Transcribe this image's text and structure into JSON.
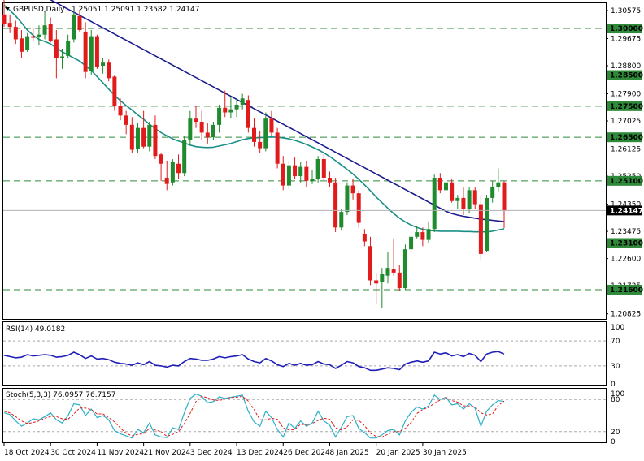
{
  "header": {
    "symbol": "GBPUSD,Daily",
    "ohlc": "1.25051 1.25091 1.23582 1.24147",
    "rsi_label": "RSI(14) 49.0182",
    "stoch_label": "Stoch(5,3,3) 76.0957 76.7157"
  },
  "colors": {
    "up": "#1f8a2e",
    "down": "#e11b1b",
    "ma_fast": "#1a8f86",
    "ma_slow": "#1b1b8f",
    "rsi": "#1f1fb8",
    "stoch_main": "#2ab0c8",
    "stoch_signal": "#e11b1b",
    "level_line": "#2f8a3a",
    "level_tag_bg": "#2f8a3a"
  },
  "chart_data": {
    "type": "candlestick",
    "price_axis_ticks": [
      "1.30575",
      "1.29675",
      "1.28800",
      "1.27900",
      "1.27025",
      "1.26125",
      "1.25250",
      "1.24350",
      "1.23475",
      "1.22600",
      "1.21725",
      "1.20825"
    ],
    "ylim": [
      1.2066,
      1.3081
    ],
    "current_price": "1.24147",
    "horizontal_levels": [
      "1.30000",
      "1.28500",
      "1.27500",
      "1.26500",
      "1.25100",
      "1.23100",
      "1.21600"
    ],
    "x_labels": [
      "18 Oct 2024",
      "30 Oct 2024",
      "11 Nov 2024",
      "21 Nov 2024",
      "3 Dec 2024",
      "13 Dec 2024",
      "26 Dec 2024",
      "8 Jan 2025",
      "20 Jan 2025",
      "30 Jan 2025"
    ],
    "candles": [
      {
        "o": 1.3045,
        "h": 1.3095,
        "l": 1.3005,
        "c": 1.3015
      },
      {
        "o": 1.3018,
        "h": 1.3045,
        "l": 1.2985,
        "c": 1.3005
      },
      {
        "o": 1.3005,
        "h": 1.3025,
        "l": 1.295,
        "c": 1.2965
      },
      {
        "o": 1.2968,
        "h": 1.2995,
        "l": 1.2905,
        "c": 1.2925
      },
      {
        "o": 1.293,
        "h": 1.2985,
        "l": 1.2925,
        "c": 1.2975
      },
      {
        "o": 1.2975,
        "h": 1.3,
        "l": 1.296,
        "c": 1.297
      },
      {
        "o": 1.2972,
        "h": 1.301,
        "l": 1.2945,
        "c": 1.298
      },
      {
        "o": 1.298,
        "h": 1.3055,
        "l": 1.2965,
        "c": 1.301
      },
      {
        "o": 1.3015,
        "h": 1.3035,
        "l": 1.2955,
        "c": 1.296
      },
      {
        "o": 1.2965,
        "h": 1.2995,
        "l": 1.284,
        "c": 1.2905
      },
      {
        "o": 1.2905,
        "h": 1.2935,
        "l": 1.287,
        "c": 1.291
      },
      {
        "o": 1.2912,
        "h": 1.298,
        "l": 1.2905,
        "c": 1.296
      },
      {
        "o": 1.2965,
        "h": 1.3055,
        "l": 1.2955,
        "c": 1.3045
      },
      {
        "o": 1.304,
        "h": 1.306,
        "l": 1.299,
        "c": 1.2995
      },
      {
        "o": 1.299,
        "h": 1.302,
        "l": 1.284,
        "c": 1.286
      },
      {
        "o": 1.2862,
        "h": 1.2995,
        "l": 1.285,
        "c": 1.2975
      },
      {
        "o": 1.2975,
        "h": 1.298,
        "l": 1.287,
        "c": 1.2875
      },
      {
        "o": 1.288,
        "h": 1.2905,
        "l": 1.2855,
        "c": 1.289
      },
      {
        "o": 1.289,
        "h": 1.29,
        "l": 1.283,
        "c": 1.284
      },
      {
        "o": 1.2845,
        "h": 1.285,
        "l": 1.2735,
        "c": 1.275
      },
      {
        "o": 1.2752,
        "h": 1.2775,
        "l": 1.2705,
        "c": 1.272
      },
      {
        "o": 1.272,
        "h": 1.2735,
        "l": 1.266,
        "c": 1.269
      },
      {
        "o": 1.269,
        "h": 1.2715,
        "l": 1.26,
        "c": 1.261
      },
      {
        "o": 1.2612,
        "h": 1.2695,
        "l": 1.26,
        "c": 1.268
      },
      {
        "o": 1.268,
        "h": 1.2735,
        "l": 1.2615,
        "c": 1.262
      },
      {
        "o": 1.262,
        "h": 1.27,
        "l": 1.2605,
        "c": 1.269
      },
      {
        "o": 1.269,
        "h": 1.272,
        "l": 1.258,
        "c": 1.259
      },
      {
        "o": 1.2595,
        "h": 1.26,
        "l": 1.251,
        "c": 1.2565
      },
      {
        "o": 1.252,
        "h": 1.2575,
        "l": 1.248,
        "c": 1.25
      },
      {
        "o": 1.2505,
        "h": 1.258,
        "l": 1.2495,
        "c": 1.257
      },
      {
        "o": 1.2565,
        "h": 1.2595,
        "l": 1.2515,
        "c": 1.2535
      },
      {
        "o": 1.2535,
        "h": 1.2655,
        "l": 1.2525,
        "c": 1.264
      },
      {
        "o": 1.264,
        "h": 1.2735,
        "l": 1.2625,
        "c": 1.271
      },
      {
        "o": 1.271,
        "h": 1.275,
        "l": 1.268,
        "c": 1.27
      },
      {
        "o": 1.27,
        "h": 1.2735,
        "l": 1.264,
        "c": 1.2665
      },
      {
        "o": 1.2665,
        "h": 1.2695,
        "l": 1.263,
        "c": 1.265
      },
      {
        "o": 1.265,
        "h": 1.27,
        "l": 1.264,
        "c": 1.269
      },
      {
        "o": 1.269,
        "h": 1.2755,
        "l": 1.2665,
        "c": 1.2745
      },
      {
        "o": 1.2745,
        "h": 1.28,
        "l": 1.2715,
        "c": 1.273
      },
      {
        "o": 1.273,
        "h": 1.278,
        "l": 1.271,
        "c": 1.274
      },
      {
        "o": 1.274,
        "h": 1.2775,
        "l": 1.2715,
        "c": 1.2755
      },
      {
        "o": 1.2755,
        "h": 1.279,
        "l": 1.274,
        "c": 1.2775
      },
      {
        "o": 1.277,
        "h": 1.2785,
        "l": 1.2665,
        "c": 1.268
      },
      {
        "o": 1.268,
        "h": 1.271,
        "l": 1.262,
        "c": 1.2635
      },
      {
        "o": 1.2635,
        "h": 1.267,
        "l": 1.26,
        "c": 1.2615
      },
      {
        "o": 1.2615,
        "h": 1.273,
        "l": 1.2605,
        "c": 1.271
      },
      {
        "o": 1.271,
        "h": 1.2735,
        "l": 1.2655,
        "c": 1.2665
      },
      {
        "o": 1.2665,
        "h": 1.268,
        "l": 1.255,
        "c": 1.2565
      },
      {
        "o": 1.2565,
        "h": 1.259,
        "l": 1.248,
        "c": 1.2495
      },
      {
        "o": 1.2495,
        "h": 1.2575,
        "l": 1.2485,
        "c": 1.256
      },
      {
        "o": 1.256,
        "h": 1.2585,
        "l": 1.2515,
        "c": 1.2525
      },
      {
        "o": 1.2525,
        "h": 1.257,
        "l": 1.2505,
        "c": 1.2555
      },
      {
        "o": 1.2555,
        "h": 1.2575,
        "l": 1.249,
        "c": 1.251
      },
      {
        "o": 1.251,
        "h": 1.2545,
        "l": 1.25,
        "c": 1.2515
      },
      {
        "o": 1.2515,
        "h": 1.259,
        "l": 1.2505,
        "c": 1.258
      },
      {
        "o": 1.258,
        "h": 1.2595,
        "l": 1.251,
        "c": 1.252
      },
      {
        "o": 1.252,
        "h": 1.254,
        "l": 1.249,
        "c": 1.2505
      },
      {
        "o": 1.2505,
        "h": 1.252,
        "l": 1.2345,
        "c": 1.236
      },
      {
        "o": 1.236,
        "h": 1.242,
        "l": 1.235,
        "c": 1.241
      },
      {
        "o": 1.241,
        "h": 1.2505,
        "l": 1.24,
        "c": 1.2495
      },
      {
        "o": 1.2495,
        "h": 1.2515,
        "l": 1.245,
        "c": 1.247
      },
      {
        "o": 1.247,
        "h": 1.248,
        "l": 1.236,
        "c": 1.2375
      },
      {
        "o": 1.234,
        "h": 1.2355,
        "l": 1.23,
        "c": 1.2315
      },
      {
        "o": 1.23,
        "h": 1.233,
        "l": 1.2175,
        "c": 1.219
      },
      {
        "o": 1.219,
        "h": 1.2215,
        "l": 1.2115,
        "c": 1.218
      },
      {
        "o": 1.2185,
        "h": 1.223,
        "l": 1.21,
        "c": 1.221
      },
      {
        "o": 1.2205,
        "h": 1.228,
        "l": 1.218,
        "c": 1.223
      },
      {
        "o": 1.2225,
        "h": 1.2325,
        "l": 1.2205,
        "c": 1.2215
      },
      {
        "o": 1.2215,
        "h": 1.224,
        "l": 1.2155,
        "c": 1.2165
      },
      {
        "o": 1.2165,
        "h": 1.2305,
        "l": 1.216,
        "c": 1.229
      },
      {
        "o": 1.229,
        "h": 1.2335,
        "l": 1.228,
        "c": 1.233
      },
      {
        "o": 1.233,
        "h": 1.2365,
        "l": 1.2325,
        "c": 1.2345
      },
      {
        "o": 1.2345,
        "h": 1.236,
        "l": 1.23,
        "c": 1.232
      },
      {
        "o": 1.232,
        "h": 1.238,
        "l": 1.231,
        "c": 1.2355
      },
      {
        "o": 1.2355,
        "h": 1.253,
        "l": 1.2345,
        "c": 1.252
      },
      {
        "o": 1.252,
        "h": 1.2535,
        "l": 1.247,
        "c": 1.248
      },
      {
        "o": 1.248,
        "h": 1.2525,
        "l": 1.247,
        "c": 1.2505
      },
      {
        "o": 1.2505,
        "h": 1.2515,
        "l": 1.244,
        "c": 1.2445
      },
      {
        "o": 1.2445,
        "h": 1.2465,
        "l": 1.242,
        "c": 1.2455
      },
      {
        "o": 1.2455,
        "h": 1.249,
        "l": 1.24,
        "c": 1.242
      },
      {
        "o": 1.242,
        "h": 1.249,
        "l": 1.2405,
        "c": 1.248
      },
      {
        "o": 1.248,
        "h": 1.249,
        "l": 1.242,
        "c": 1.2435
      },
      {
        "o": 1.2435,
        "h": 1.246,
        "l": 1.2255,
        "c": 1.2275
      },
      {
        "o": 1.2285,
        "h": 1.2465,
        "l": 1.228,
        "c": 1.2455
      },
      {
        "o": 1.2455,
        "h": 1.251,
        "l": 1.244,
        "c": 1.249
      },
      {
        "o": 1.249,
        "h": 1.255,
        "l": 1.2475,
        "c": 1.2505
      },
      {
        "o": 1.2505,
        "h": 1.2509,
        "l": 1.2358,
        "c": 1.2415
      }
    ],
    "ma_fast": [
      1.3075,
      1.3058,
      1.304,
      1.3018,
      1.2995,
      1.2978,
      1.2965,
      1.2958,
      1.295,
      1.2938,
      1.2925,
      1.2915,
      1.2905,
      1.2895,
      1.288,
      1.2865,
      1.2845,
      1.2825,
      1.2805,
      1.2785,
      1.2768,
      1.2752,
      1.2738,
      1.2722,
      1.2708,
      1.2692,
      1.2678,
      1.2665,
      1.2655,
      1.2645,
      1.2638,
      1.2632,
      1.2625,
      1.262,
      1.2618,
      1.2617,
      1.2618,
      1.2622,
      1.2626,
      1.263,
      1.2636,
      1.2642,
      1.2646,
      1.2648,
      1.2649,
      1.265,
      1.2651,
      1.265,
      1.2648,
      1.2645,
      1.264,
      1.2634,
      1.2627,
      1.2619,
      1.261,
      1.26,
      1.2588,
      1.2575,
      1.2561,
      1.2547,
      1.2532,
      1.2515,
      1.2497,
      1.2478,
      1.2458,
      1.244,
      1.2422,
      1.2405,
      1.239,
      1.2378,
      1.2368,
      1.236,
      1.2354,
      1.2351,
      1.2349,
      1.2348,
      1.2348,
      1.2348,
      1.2348,
      1.2347,
      1.2347,
      1.2346,
      1.2346,
      1.2346,
      1.2348,
      1.2352,
      1.2356
    ],
    "ma_slow": [
      1.3172,
      1.3162,
      1.3152,
      1.3142,
      1.3132,
      1.3122,
      1.3112,
      1.3102,
      1.3092,
      1.3082,
      1.3072,
      1.3062,
      1.3052,
      1.3042,
      1.3032,
      1.3022,
      1.3012,
      1.3002,
      1.2992,
      1.2982,
      1.2972,
      1.2962,
      1.2952,
      1.2942,
      1.2932,
      1.2922,
      1.2912,
      1.2902,
      1.2892,
      1.2882,
      1.2872,
      1.2862,
      1.2852,
      1.2842,
      1.2832,
      1.2822,
      1.2812,
      1.2802,
      1.2792,
      1.2782,
      1.2772,
      1.2762,
      1.2752,
      1.2742,
      1.2732,
      1.2722,
      1.2712,
      1.2702,
      1.2692,
      1.2682,
      1.2672,
      1.2662,
      1.2652,
      1.2642,
      1.2632,
      1.2622,
      1.2612,
      1.2602,
      1.2592,
      1.2582,
      1.2572,
      1.2562,
      1.2552,
      1.2542,
      1.2532,
      1.2522,
      1.2512,
      1.2502,
      1.2492,
      1.2482,
      1.2472,
      1.2462,
      1.2452,
      1.2442,
      1.2432,
      1.2422,
      1.2412,
      1.2405,
      1.24,
      1.2396,
      1.2393,
      1.239,
      1.2387,
      1.2385,
      1.2383,
      1.2381,
      1.2379
    ],
    "rsi": {
      "label": "RSI(14) 49.0182",
      "ylim": [
        0,
        100
      ],
      "ticks": [
        "100",
        "70",
        "30",
        "0"
      ],
      "levels": [
        70,
        30
      ],
      "values": [
        47,
        45,
        43,
        44,
        48,
        46,
        47,
        48,
        47,
        44,
        45,
        47,
        52,
        48,
        42,
        46,
        41,
        42,
        40,
        36,
        34,
        33,
        31,
        35,
        32,
        37,
        31,
        30,
        28,
        31,
        30,
        37,
        42,
        41,
        39,
        39,
        41,
        45,
        43,
        45,
        46,
        48,
        41,
        37,
        35,
        42,
        38,
        32,
        29,
        34,
        31,
        34,
        31,
        32,
        37,
        33,
        32,
        26,
        31,
        37,
        35,
        29,
        27,
        23,
        23,
        25,
        27,
        26,
        24,
        33,
        36,
        38,
        36,
        38,
        52,
        49,
        51,
        46,
        48,
        45,
        50,
        47,
        37,
        49,
        52,
        53,
        49
      ]
    },
    "stochastic": {
      "label": "Stoch(5,3,3) 76.0957 76.7157",
      "ylim": [
        0,
        100
      ],
      "ticks": [
        "100",
        "80",
        "20",
        "0"
      ],
      "levels": [
        80,
        20
      ],
      "main": [
        55,
        52,
        40,
        30,
        36,
        44,
        42,
        48,
        55,
        42,
        36,
        50,
        72,
        70,
        50,
        62,
        46,
        50,
        42,
        22,
        16,
        12,
        8,
        24,
        18,
        36,
        14,
        10,
        9,
        27,
        24,
        55,
        82,
        90,
        86,
        74,
        76,
        85,
        82,
        84,
        86,
        88,
        58,
        38,
        30,
        58,
        46,
        24,
        10,
        36,
        26,
        40,
        30,
        36,
        58,
        40,
        32,
        10,
        28,
        48,
        50,
        26,
        18,
        8,
        8,
        14,
        22,
        24,
        14,
        40,
        56,
        66,
        62,
        68,
        88,
        80,
        84,
        70,
        72,
        62,
        72,
        64,
        30,
        58,
        70,
        78,
        76
      ],
      "signal": [
        58,
        55,
        48,
        40,
        35,
        37,
        40,
        45,
        48,
        48,
        44,
        43,
        53,
        64,
        64,
        61,
        53,
        53,
        46,
        38,
        27,
        17,
        12,
        15,
        16,
        26,
        23,
        20,
        11,
        15,
        20,
        35,
        54,
        76,
        86,
        83,
        79,
        78,
        81,
        84,
        84,
        86,
        77,
        61,
        42,
        42,
        45,
        43,
        27,
        23,
        24,
        34,
        32,
        35,
        41,
        45,
        43,
        27,
        23,
        29,
        42,
        41,
        31,
        17,
        11,
        10,
        15,
        20,
        20,
        26,
        37,
        54,
        61,
        65,
        73,
        79,
        84,
        78,
        75,
        68,
        68,
        66,
        55,
        51,
        53,
        69,
        77
      ]
    }
  }
}
